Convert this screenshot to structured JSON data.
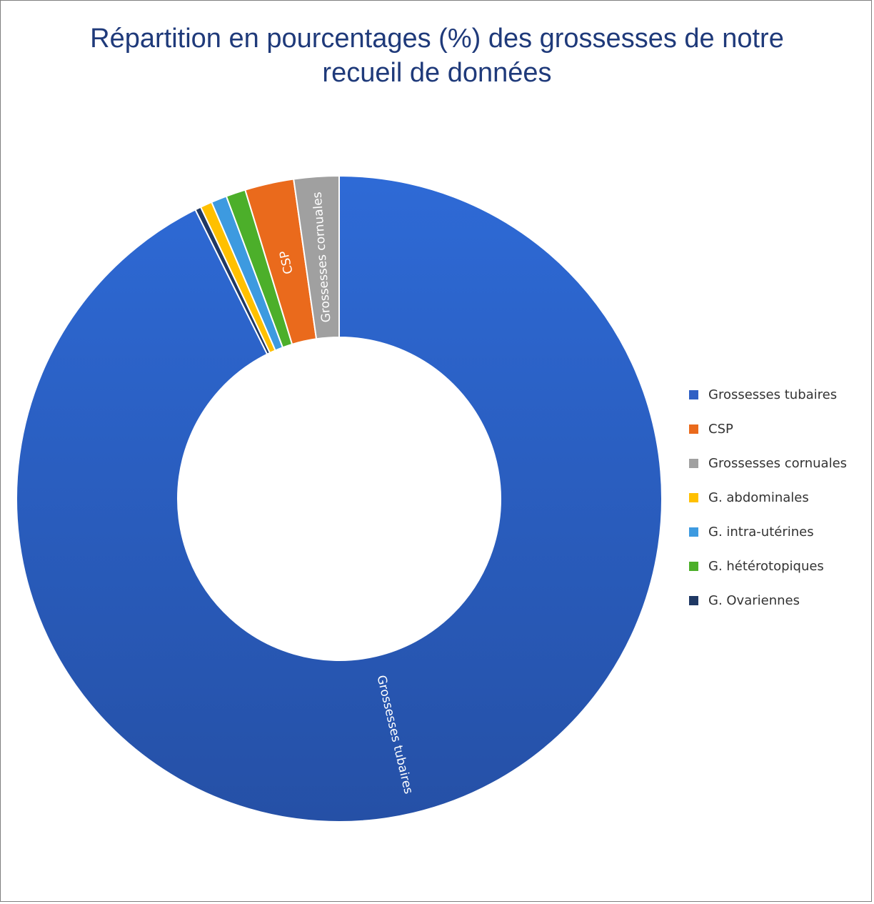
{
  "chart_data": {
    "type": "pie",
    "donut": true,
    "title_lines": [
      "Répartition en pourcentages (%) des grossesses de notre",
      "recueil de données"
    ],
    "legend_position": "right",
    "slices": [
      {
        "name": "Grossesses tubaires",
        "value": 94.5,
        "color": "#2f5fc4",
        "label": "Grossesses tubaires"
      },
      {
        "name": "G. Ovariennes",
        "value": 0.3,
        "color": "#1f3864",
        "label": ""
      },
      {
        "name": "G. abdominales",
        "value": 0.6,
        "color": "#ffc000",
        "label": ""
      },
      {
        "name": "G. intra-utérines",
        "value": 0.8,
        "color": "#3d9ae0",
        "label": ""
      },
      {
        "name": "G. hétérotopiques",
        "value": 1.0,
        "color": "#4caf2a",
        "label": ""
      },
      {
        "name": "CSP",
        "value": 2.5,
        "color": "#ea6a1c",
        "label": "CSP"
      },
      {
        "name": "Grossesses cornuales",
        "value": 2.3,
        "color": "#a0a0a0",
        "label": "Grossesses cornuales"
      }
    ],
    "legend": [
      {
        "name": "Grossesses tubaires",
        "color": "#2f5fc4"
      },
      {
        "name": "CSP",
        "color": "#ea6a1c"
      },
      {
        "name": "Grossesses cornuales",
        "color": "#a0a0a0"
      },
      {
        "name": "G. abdominales",
        "color": "#ffc000"
      },
      {
        "name": "G. intra-utérines",
        "color": "#3d9ae0"
      },
      {
        "name": "G. hétérotopiques",
        "color": "#4caf2a"
      },
      {
        "name": "G. Ovariennes",
        "color": "#1f3864"
      }
    ]
  }
}
